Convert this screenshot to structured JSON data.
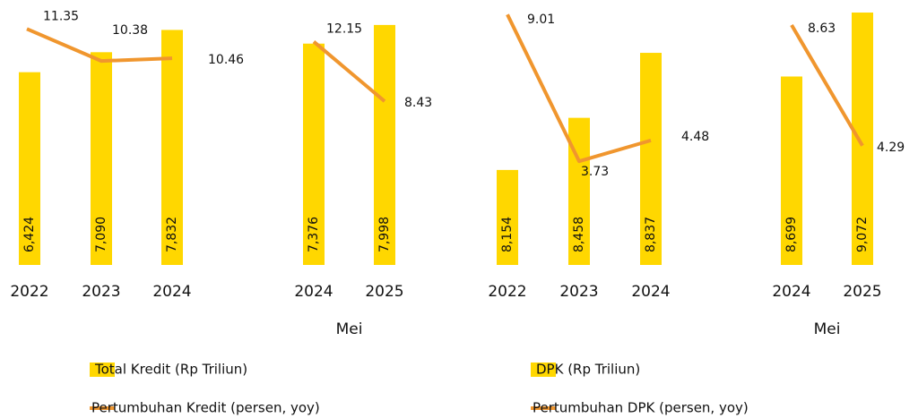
{
  "chart_data": [
    {
      "type": "bar",
      "series": [
        {
          "name": "Total Kredit (Rp Triliun)",
          "color": "#ffd700"
        },
        {
          "name": "Pertumbuhan  Kredit (persen, yoy)",
          "color": "#f0962e"
        }
      ],
      "ylim": [
        0,
        8800
      ],
      "panels": [
        {
          "categories": [
            "2022",
            "2023",
            "2024"
          ],
          "values": [
            6424,
            7090,
            7832
          ],
          "value_labels": [
            "6,424",
            "7,090",
            "7,832"
          ],
          "line": [
            11.35,
            10.38,
            10.46
          ],
          "y2lim": [
            4.2,
            12.2
          ]
        },
        {
          "categories": [
            "2024",
            "2025"
          ],
          "label": "Mei",
          "values": [
            7376,
            7998
          ],
          "value_labels": [
            "7,376",
            "7,998"
          ],
          "line": [
            12.15,
            8.43
          ],
          "y2lim": [
            -1.8,
            14.7
          ]
        }
      ]
    },
    {
      "type": "bar",
      "series": [
        {
          "name": "DPK (Rp Triliun)",
          "color": "#ffd700"
        },
        {
          "name": "Pertumbuhan DPK (persen, yoy)",
          "color": "#f0962e"
        }
      ],
      "ylim": [
        7600,
        9140
      ],
      "panels": [
        {
          "categories": [
            "2022",
            "2023",
            "2024"
          ],
          "values": [
            8154,
            8458,
            8837
          ],
          "value_labels": [
            "8,154",
            "8,458",
            "8,837"
          ],
          "line": [
            9.01,
            3.73,
            4.48
          ],
          "y2lim": [
            0,
            9.5
          ]
        },
        {
          "categories": [
            "2024",
            "2025"
          ],
          "label": "Mei",
          "values": [
            8699,
            9072
          ],
          "value_labels": [
            "8,699",
            "9,072"
          ],
          "line": [
            8.63,
            4.29
          ],
          "y2lim": [
            0,
            9.5
          ]
        }
      ]
    }
  ]
}
